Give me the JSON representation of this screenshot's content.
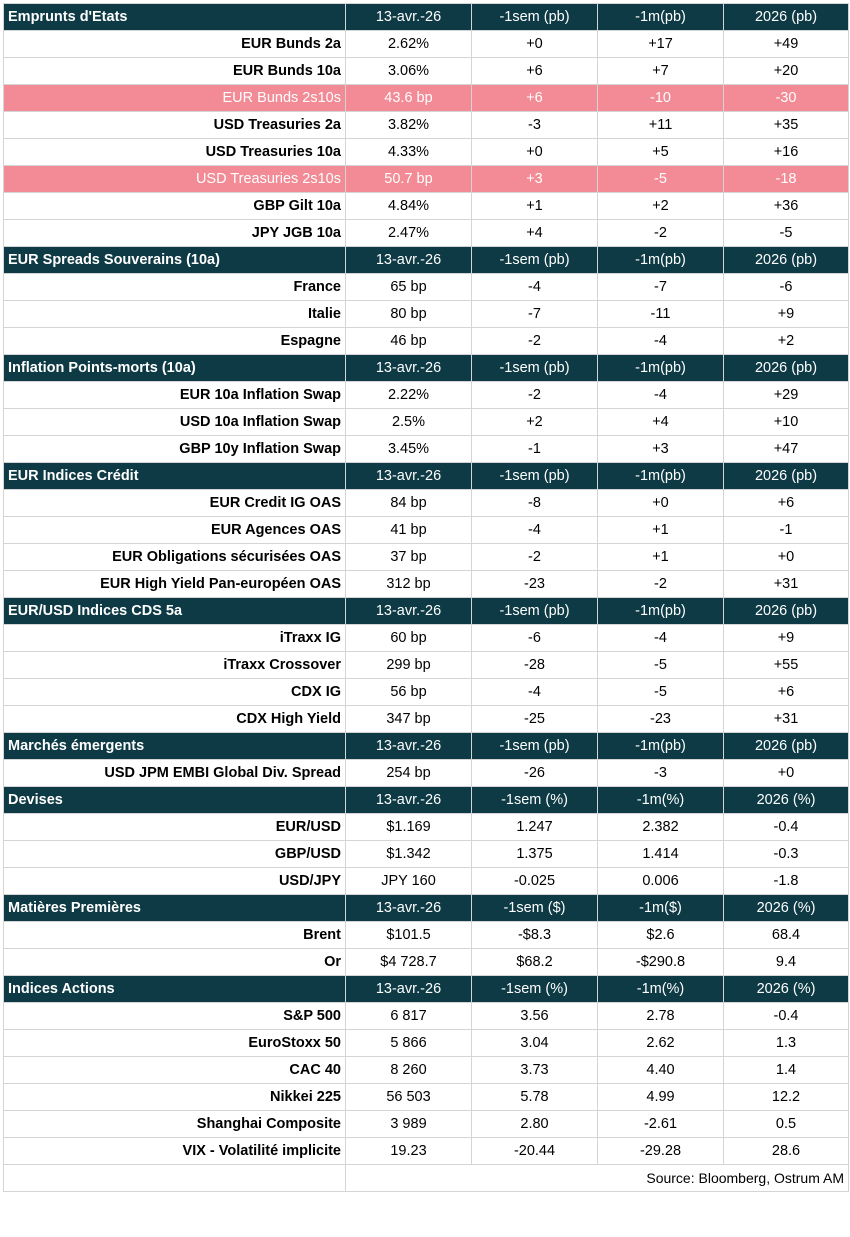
{
  "sections": [
    {
      "title": "Emprunts d'Etats",
      "cols": [
        "13-avr.-26",
        "-1sem (pb)",
        "-1m(pb)",
        "2026 (pb)"
      ],
      "rows": [
        {
          "label": "EUR Bunds 2a",
          "values": [
            "2.62%",
            "+0",
            "+17",
            "+49"
          ]
        },
        {
          "label": "EUR Bunds 10a",
          "values": [
            "3.06%",
            "+6",
            "+7",
            "+20"
          ]
        },
        {
          "label": "EUR Bunds 2s10s",
          "values": [
            "43.6 bp",
            "+6",
            "-10",
            "-30"
          ],
          "highlight": true
        },
        {
          "label": "USD Treasuries 2a",
          "values": [
            "3.82%",
            "-3",
            "+11",
            "+35"
          ]
        },
        {
          "label": "USD Treasuries 10a",
          "values": [
            "4.33%",
            "+0",
            "+5",
            "+16"
          ]
        },
        {
          "label": "USD Treasuries 2s10s",
          "values": [
            "50.7 bp",
            "+3",
            "-5",
            "-18"
          ],
          "highlight": true
        },
        {
          "label": "GBP Gilt 10a",
          "values": [
            "4.84%",
            "+1",
            "+2",
            "+36"
          ]
        },
        {
          "label": "JPY JGB  10a",
          "values": [
            "2.47%",
            "+4",
            "-2",
            "-5"
          ]
        }
      ]
    },
    {
      "title": "EUR Spreads Souverains (10a)",
      "cols": [
        "13-avr.-26",
        "-1sem (pb)",
        "-1m(pb)",
        "2026 (pb)"
      ],
      "rows": [
        {
          "label": "France",
          "values": [
            "65 bp",
            "-4",
            "-7",
            "-6"
          ]
        },
        {
          "label": "Italie",
          "values": [
            "80 bp",
            "-7",
            "-11",
            "+9"
          ]
        },
        {
          "label": "Espagne",
          "values": [
            "46 bp",
            "-2",
            "-4",
            "+2"
          ]
        }
      ]
    },
    {
      "title": " Inflation Points-morts (10a)",
      "cols": [
        "13-avr.-26",
        "-1sem (pb)",
        "-1m(pb)",
        "2026 (pb)"
      ],
      "rows": [
        {
          "label": "EUR 10a Inflation Swap",
          "values": [
            "2.22%",
            "-2",
            "-4",
            "+29"
          ]
        },
        {
          "label": "USD 10a Inflation Swap",
          "values": [
            "2.5%",
            "+2",
            "+4",
            "+10"
          ]
        },
        {
          "label": "GBP 10y Inflation Swap",
          "values": [
            "3.45%",
            "-1",
            "+3",
            "+47"
          ]
        }
      ]
    },
    {
      "title": "EUR Indices Crédit",
      "cols": [
        "13-avr.-26",
        "-1sem (pb)",
        "-1m(pb)",
        "2026 (pb)"
      ],
      "rows": [
        {
          "label": "EUR Credit IG OAS",
          "values": [
            "84 bp",
            "-8",
            "+0",
            "+6"
          ]
        },
        {
          "label": "EUR Agences OAS",
          "values": [
            "41 bp",
            "-4",
            "+1",
            "-1"
          ]
        },
        {
          "label": "EUR Obligations sécurisées OAS",
          "values": [
            "37 bp",
            "-2",
            "+1",
            "+0"
          ]
        },
        {
          "label": "EUR High Yield Pan-européen OAS",
          "values": [
            "312 bp",
            "-23",
            "-2",
            "+31"
          ]
        }
      ]
    },
    {
      "title": "EUR/USD Indices CDS 5a",
      "cols": [
        "13-avr.-26",
        "-1sem (pb)",
        "-1m(pb)",
        "2026 (pb)"
      ],
      "rows": [
        {
          "label": "iTraxx IG",
          "values": [
            "60 bp",
            "-6",
            "-4",
            "+9"
          ]
        },
        {
          "label": "iTraxx Crossover ",
          "values": [
            "299 bp",
            "-28",
            "-5",
            "+55"
          ]
        },
        {
          "label": "CDX IG",
          "values": [
            "56 bp",
            "-4",
            "-5",
            "+6"
          ]
        },
        {
          "label": "CDX High Yield",
          "values": [
            "347 bp",
            "-25",
            "-23",
            "+31"
          ]
        }
      ]
    },
    {
      "title": "Marchés émergents",
      "cols": [
        "13-avr.-26",
        "-1sem (pb)",
        "-1m(pb)",
        "2026 (pb)"
      ],
      "rows": [
        {
          "label": "USD JPM EMBI Global Div. Spread ",
          "values": [
            "254 bp",
            "-26",
            "-3",
            "+0"
          ]
        }
      ]
    },
    {
      "title": "Devises",
      "cols": [
        "13-avr.-26",
        "-1sem (%)",
        "-1m(%)",
        "2026 (%)"
      ],
      "rows": [
        {
          "label": "EUR/USD",
          "values": [
            "$1.169",
            "1.247",
            "2.382",
            "-0.4"
          ]
        },
        {
          "label": "GBP/USD",
          "values": [
            "$1.342",
            "1.375",
            "1.414",
            "-0.3"
          ]
        },
        {
          "label": "USD/JPY",
          "values": [
            "JPY 160",
            "-0.025",
            "0.006",
            "-1.8"
          ]
        }
      ]
    },
    {
      "title": "Matières Premières",
      "cols": [
        "13-avr.-26",
        "-1sem ($)",
        "-1m($)",
        "2026 (%)"
      ],
      "rows": [
        {
          "label": "Brent",
          "values": [
            "$101.5",
            "-$8.3",
            "$2.6",
            "68.4"
          ]
        },
        {
          "label": "Or",
          "values": [
            "$4 728.7",
            "$68.2",
            "-$290.8",
            "9.4"
          ]
        }
      ]
    },
    {
      "title": "Indices Actions",
      "cols": [
        "13-avr.-26",
        "-1sem (%)",
        "-1m(%)",
        "2026 (%)"
      ],
      "rows": [
        {
          "label": "S&P 500",
          "values": [
            "6 817",
            "3.56",
            "2.78",
            "-0.4"
          ]
        },
        {
          "label": "EuroStoxx 50",
          "values": [
            "5 866",
            "3.04",
            "2.62",
            "1.3"
          ]
        },
        {
          "label": "CAC 40",
          "values": [
            "8 260",
            "3.73",
            "4.40",
            "1.4"
          ]
        },
        {
          "label": "Nikkei 225",
          "values": [
            "56 503",
            "5.78",
            "4.99",
            "12.2"
          ]
        },
        {
          "label": "Shanghai Composite",
          "values": [
            "3 989",
            "2.80",
            "-2.61",
            "0.5"
          ]
        },
        {
          "label": "VIX - Volatilité implicite",
          "values": [
            "19.23",
            "-20.44",
            "-29.28",
            "28.6"
          ]
        }
      ]
    }
  ],
  "source": "Source: Bloomberg, Ostrum AM",
  "colors": {
    "header_bg": "#0d3a44",
    "header_text": "#ffffff",
    "highlight_bg": "#f28b95",
    "highlight_text": "#ffffff"
  }
}
